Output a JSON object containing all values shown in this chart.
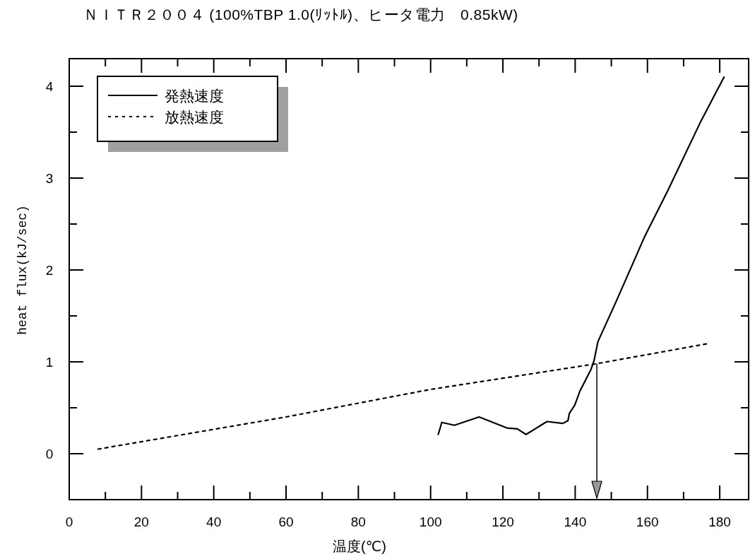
{
  "chart_data": {
    "type": "line",
    "title": "ＮＩＴＲ２００４ (100%TBP 1.0(ﾘｯﾄﾙ)、ヒータ電力　0.85kW)",
    "xlabel": "温度(℃)",
    "ylabel": "heat flux(kJ/sec)",
    "xlim": [
      0,
      188
    ],
    "ylim": [
      -0.5,
      4.3
    ],
    "xticks": [
      0,
      20,
      40,
      60,
      80,
      100,
      120,
      140,
      160,
      180
    ],
    "yticks": [
      0,
      1,
      2,
      3,
      4
    ],
    "grid": false,
    "legend": "top left",
    "marker": "none",
    "series": [
      {
        "name": "発熱速度",
        "color": "#000000",
        "line_style": "solid",
        "x": [
          102.1,
          103.1,
          106.6,
          113.4,
          121.1,
          124,
          126.4,
          132.2,
          136.6,
          138,
          138.4,
          139.9,
          141.3,
          144.4,
          145.2,
          146.3,
          151.6,
          159.3,
          165.7,
          174.8,
          181.2
        ],
        "values": [
          0.21,
          0.34,
          0.31,
          0.4,
          0.28,
          0.27,
          0.21,
          0.35,
          0.33,
          0.36,
          0.44,
          0.53,
          0.68,
          0.92,
          1.01,
          1.22,
          1.68,
          2.37,
          2.87,
          3.62,
          4.1
        ]
      },
      {
        "name": "放熱速度",
        "color": "#000000",
        "line_style": "dotted",
        "x": [
          8,
          60,
          100,
          146,
          177
        ],
        "values": [
          0.05,
          0.4,
          0.7,
          0.98,
          1.2
        ]
      }
    ],
    "ref_lines": [
      {
        "axis": "x",
        "value": 146,
        "color": "#000000"
      }
    ]
  }
}
